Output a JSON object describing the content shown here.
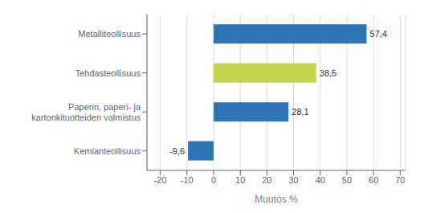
{
  "chart_data": {
    "type": "bar",
    "orientation": "horizontal",
    "categories": [
      "Kemianteollisuus",
      "Paperin, paperi- ja kartonkituotteiden valmistus",
      "Tehdasteollisuus",
      "Metalliteollisuus"
    ],
    "values": [
      -9.6,
      28.1,
      38.5,
      57.4
    ],
    "value_labels": [
      "-9,6",
      "28,1",
      "38,5",
      "57,4"
    ],
    "colors": [
      "#2e75b6",
      "#2e75b6",
      "#c5d44e",
      "#2e75b6"
    ],
    "xlabel": "Muutos %",
    "xlim": [
      -25,
      72
    ],
    "xticks": [
      -20,
      -10,
      0,
      10,
      20,
      30,
      40,
      50,
      60,
      70
    ],
    "grid": true
  }
}
